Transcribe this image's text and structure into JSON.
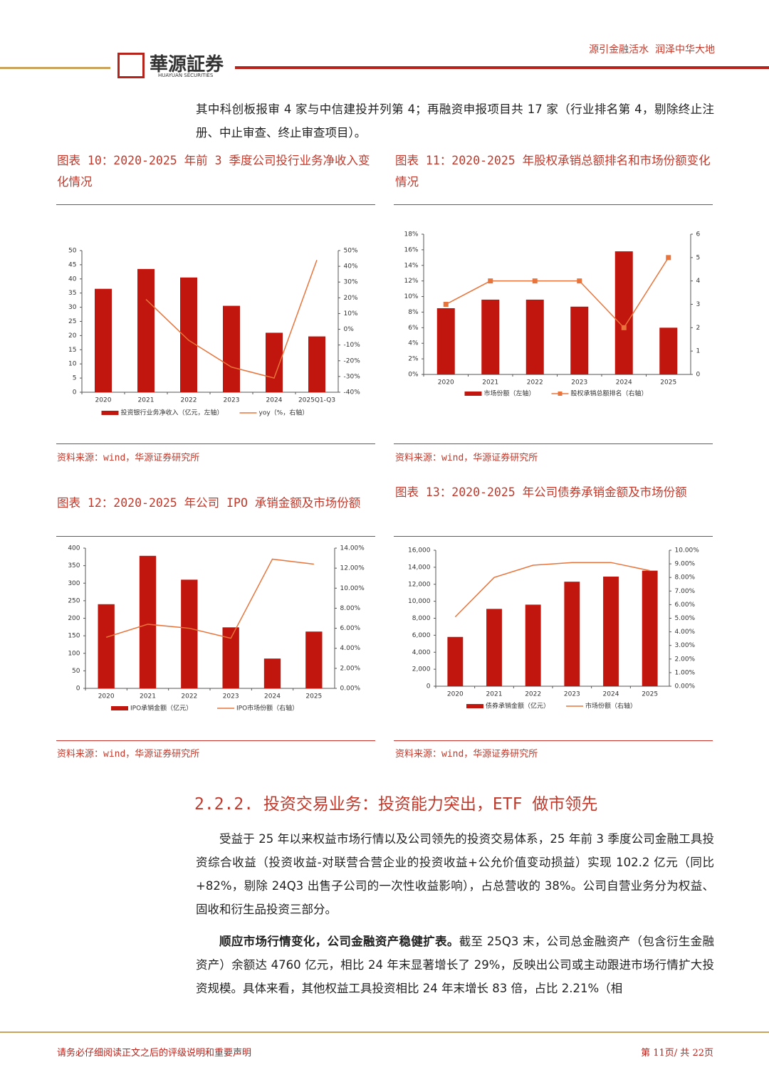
{
  "header": {
    "logo": "華源証券",
    "logo_en": "HUAYUAN SECURITIES",
    "slogan": "源引金融活水  润泽中华大地"
  },
  "intro": "其中科创板报审 4 家与中信建投并列第 4；再融资申报项目共 17 家（行业排名第 4，剔除终止注册、中止审查、终止审查项目）。",
  "chart_data": [
    {
      "type": "bar",
      "title": "图表 10：2020-2025 年前 3 季度公司投行业务净收入变化情况",
      "source": "资料来源：wind，华源证券研究所",
      "categories": [
        "2020",
        "2021",
        "2022",
        "2023",
        "2024",
        "2025Q1-Q3"
      ],
      "series": [
        {
          "name": "投资银行业务净收入（亿元，左轴）",
          "type": "bar",
          "color": "#c0160d",
          "values": [
            36.5,
            43.5,
            40.5,
            30.5,
            21,
            19.7
          ]
        },
        {
          "name": "yoy（%，右轴）",
          "type": "line",
          "axis": "y2",
          "color": "#e8743b",
          "values": [
            null,
            19,
            -7,
            -24,
            -31,
            44
          ]
        }
      ],
      "ylim": [
        0,
        50
      ],
      "yticks": [
        0,
        5,
        10,
        15,
        20,
        25,
        30,
        35,
        40,
        45,
        50
      ],
      "y2lim": [
        -40,
        50
      ],
      "y2ticks": [
        {
          "value": -40,
          "label": "-40%"
        },
        {
          "value": -30,
          "label": "-30%"
        },
        {
          "value": -20,
          "label": "-20%"
        },
        {
          "value": -10,
          "label": "-10%"
        },
        {
          "value": 0,
          "label": "0%"
        },
        {
          "value": 10,
          "label": "10%"
        },
        {
          "value": 20,
          "label": "20%"
        },
        {
          "value": 30,
          "label": "30%"
        },
        {
          "value": 40,
          "label": "40%"
        },
        {
          "value": 50,
          "label": "50%"
        }
      ]
    },
    {
      "type": "bar",
      "title": "图表 11：2020-2025 年股权承销总额排名和市场份额变化情况",
      "source": "资料来源：wind，华源证券研究所",
      "categories": [
        "2020",
        "2021",
        "2022",
        "2023",
        "2024",
        "2025"
      ],
      "series": [
        {
          "name": "市场份额（左轴）",
          "type": "bar",
          "color": "#c0160d",
          "values": [
            8.5,
            9.6,
            9.6,
            8.7,
            15.8,
            6
          ]
        },
        {
          "name": "股权承销总额排名（右轴）",
          "type": "line",
          "axis": "y2",
          "marker": true,
          "color": "#e8743b",
          "values": [
            3,
            4,
            4,
            4,
            2,
            5
          ]
        }
      ],
      "ylim": [
        0,
        18
      ],
      "yticks": [
        {
          "value": 0,
          "label": "0%"
        },
        {
          "value": 2,
          "label": "2%"
        },
        {
          "value": 4,
          "label": "4%"
        },
        {
          "value": 6,
          "label": "6%"
        },
        {
          "value": 8,
          "label": "8%"
        },
        {
          "value": 10,
          "label": "10%"
        },
        {
          "value": 12,
          "label": "12%"
        },
        {
          "value": 14,
          "label": "14%"
        },
        {
          "value": 16,
          "label": "16%"
        },
        {
          "value": 18,
          "label": "18%"
        }
      ],
      "y2lim": [
        0,
        6
      ],
      "y2ticks": [
        0,
        1,
        2,
        3,
        4,
        5,
        6
      ]
    },
    {
      "type": "bar",
      "title": "图表 12：2020-2025 年公司 IPO 承销金额及市场份额",
      "source": "资料来源：wind，华源证券研究所",
      "categories": [
        "2020",
        "2021",
        "2022",
        "2023",
        "2024",
        "2025"
      ],
      "series": [
        {
          "name": "IPO承销金额（亿元）",
          "type": "bar",
          "color": "#c0160d",
          "values": [
            240,
            378,
            310,
            174,
            85,
            162
          ]
        },
        {
          "name": "IPO市场份额（右轴）",
          "type": "line",
          "axis": "y2",
          "color": "#e8743b",
          "values": [
            5.1,
            6.4,
            6.0,
            5.0,
            12.9,
            12.4
          ]
        }
      ],
      "ylim": [
        0,
        400
      ],
      "yticks": [
        0,
        50,
        100,
        150,
        200,
        250,
        300,
        350,
        400
      ],
      "y2lim": [
        0,
        14
      ],
      "y2ticks": [
        {
          "value": 0,
          "label": "0.00%"
        },
        {
          "value": 2,
          "label": "2.00%"
        },
        {
          "value": 4,
          "label": "4.00%"
        },
        {
          "value": 6,
          "label": "6.00%"
        },
        {
          "value": 8,
          "label": "8.00%"
        },
        {
          "value": 10,
          "label": "10.00%"
        },
        {
          "value": 12,
          "label": "12.00%"
        },
        {
          "value": 14,
          "label": "14.00%"
        }
      ]
    },
    {
      "type": "bar",
      "title": "图表 13：2020-2025 年公司债券承销金额及市场份额",
      "source": "资料来源：wind，华源证券研究所",
      "categories": [
        "2020",
        "2021",
        "2022",
        "2023",
        "2024",
        "2025"
      ],
      "series": [
        {
          "name": "债券承销金额（亿元）",
          "type": "bar",
          "color": "#c0160d",
          "values": [
            5800,
            9100,
            9600,
            12300,
            12900,
            13600
          ]
        },
        {
          "name": "市场份额（右轴）",
          "type": "line",
          "axis": "y2",
          "color": "#e8743b",
          "values": [
            5.1,
            8.0,
            8.9,
            9.1,
            9.1,
            8.5
          ]
        }
      ],
      "ylim": [
        0,
        16000
      ],
      "yticks": [
        0,
        {
          "value": 2000,
          "label": "2,000"
        },
        {
          "value": 4000,
          "label": "4,000"
        },
        {
          "value": 6000,
          "label": "6,000"
        },
        {
          "value": 8000,
          "label": "8,000"
        },
        {
          "value": 10000,
          "label": "10,000"
        },
        {
          "value": 12000,
          "label": "12,000"
        },
        {
          "value": 14000,
          "label": "14,000"
        },
        {
          "value": 16000,
          "label": "16,000"
        }
      ],
      "y2lim": [
        0,
        10
      ],
      "y2ticks": [
        {
          "value": 0,
          "label": "0.00%"
        },
        {
          "value": 1,
          "label": "1.00%"
        },
        {
          "value": 2,
          "label": "2.00%"
        },
        {
          "value": 3,
          "label": "3.00%"
        },
        {
          "value": 4,
          "label": "4.00%"
        },
        {
          "value": 5,
          "label": "5.00%"
        },
        {
          "value": 6,
          "label": "6.00%"
        },
        {
          "value": 7,
          "label": "7.00%"
        },
        {
          "value": 8,
          "label": "8.00%"
        },
        {
          "value": 9,
          "label": "9.00%"
        },
        {
          "value": 10,
          "label": "10.00%"
        }
      ]
    }
  ],
  "section": {
    "heading": "2.2.2. 投资交易业务：投资能力突出，ETF 做市领先",
    "paragraphs": [
      "受益于 25 年以来权益市场行情以及公司领先的投资交易体系，25 年前 3 季度公司金融工具投资综合收益（投资收益-对联营合营企业的投资收益+公允价值变动损益）实现 102.2 亿元（同比+82%，剔除 24Q3 出售子公司的一次性收益影响），占总营收的 38%。公司自营业务分为权益、固收和衍生品投资三部分。"
    ],
    "p2_lead": "顺应市场行情变化，公司金融资产稳健扩表。",
    "p2_text": "截至 25Q3 末，公司总金融资产（包含衍生金融资产）余额达 4760 亿元，相比 24 年末显著增长了 29%，反映出公司或主动跟进市场行情扩大投资规模。具体来看，其他权益工具投资相比 24 年末增长 83 倍，占比 2.21%（相"
  },
  "footer": {
    "disclaimer": "请务必仔细阅读正文之后的评级说明和重要声明",
    "page": "第 11页/ 共 22页"
  }
}
